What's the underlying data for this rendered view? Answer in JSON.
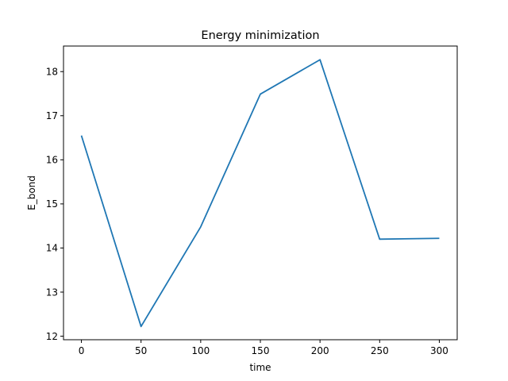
{
  "chart_data": {
    "type": "line",
    "title": "Energy minimization",
    "xlabel": "time",
    "ylabel": "E_bond",
    "x": [
      0,
      50,
      100,
      150,
      200,
      250,
      300
    ],
    "series": [
      {
        "values": [
          16.55,
          12.22,
          14.48,
          17.49,
          18.27,
          14.2,
          14.22
        ],
        "color": "#1f77b4"
      }
    ],
    "xlim": [
      -15,
      315
    ],
    "ylim": [
      11.92,
      18.58
    ],
    "xticks": [
      0,
      50,
      100,
      150,
      200,
      250,
      300
    ],
    "yticks": [
      12,
      13,
      14,
      15,
      16,
      17,
      18
    ],
    "grid": false,
    "legend": "none"
  }
}
